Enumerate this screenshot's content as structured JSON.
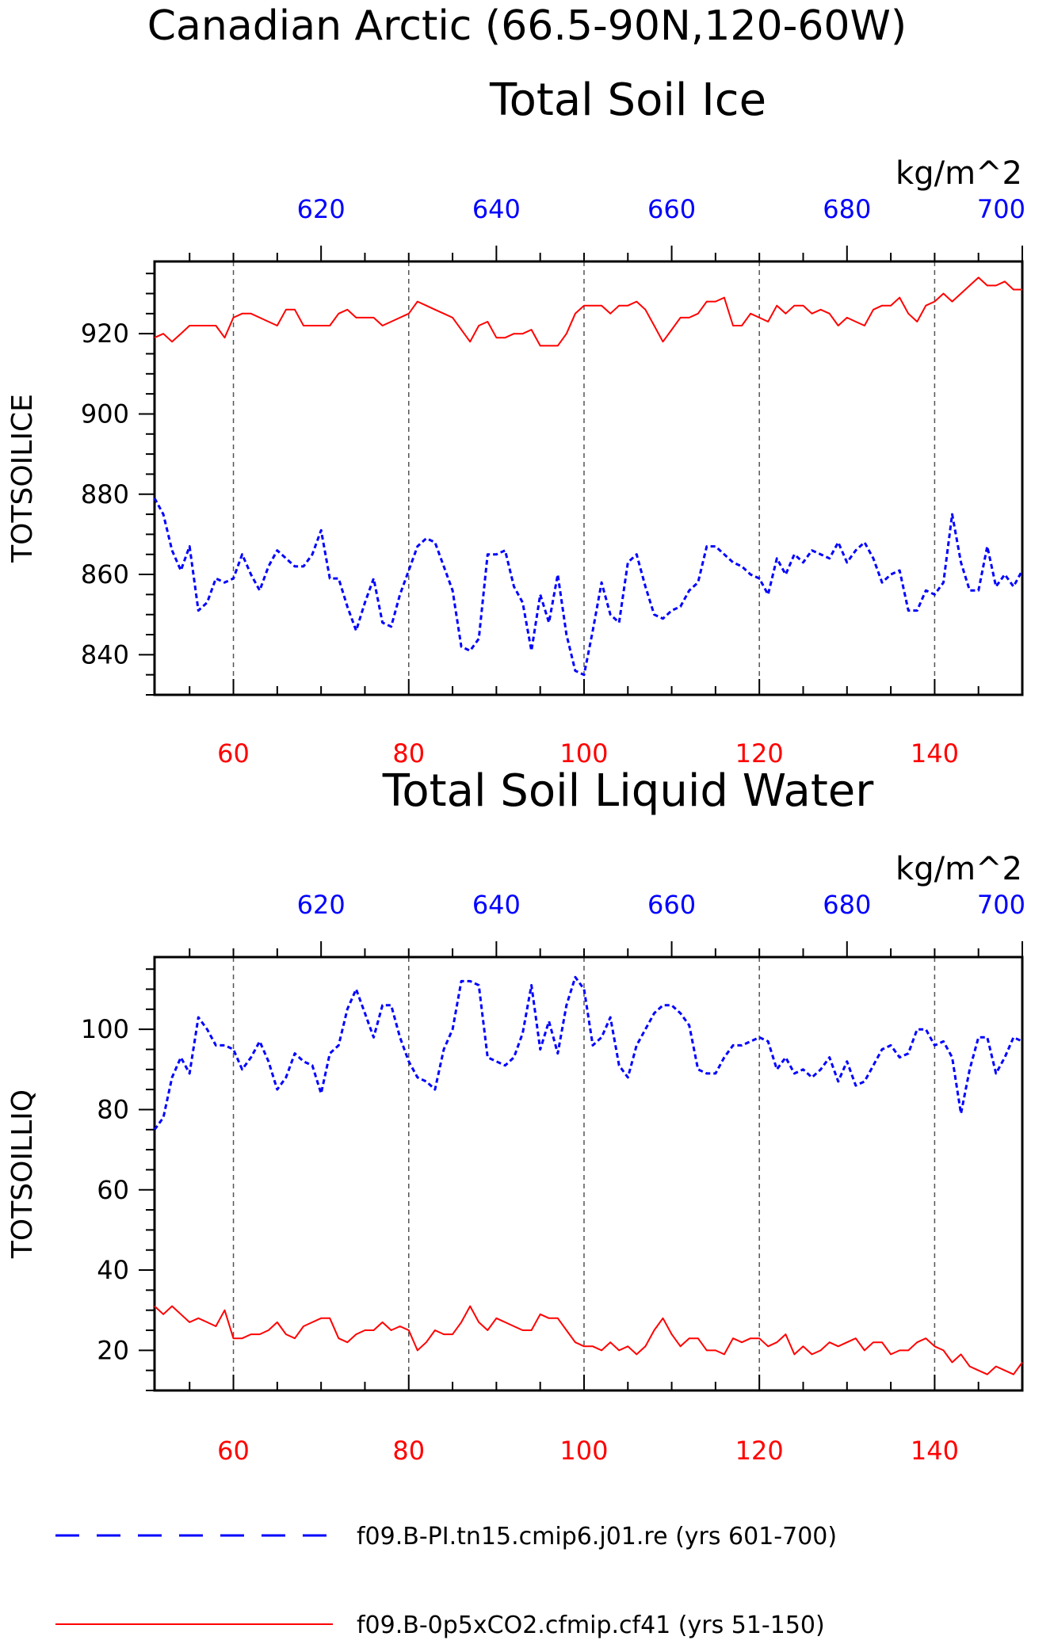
{
  "page": {
    "title_line1": "Canadian Arctic (66.5-90N,120-60W)"
  },
  "colors": {
    "red": "#ff0000",
    "blue": "#0000ff",
    "axis": "#000000",
    "grid": "#555555"
  },
  "legend": {
    "placement": "bottom",
    "entries": [
      {
        "label": "f09.B-PI.tn15.cmip6.j01.re (yrs 601-700)",
        "color": "#0000ff",
        "style": "dashed"
      },
      {
        "label": "f09.B-0p5xCO2.cfmip.cf41 (yrs 51-150)",
        "color": "#ff0000",
        "style": "solid"
      }
    ]
  },
  "chart_data": [
    {
      "type": "line",
      "title": "Total Soil Ice",
      "ylabel": "TOTSOILICE",
      "units": "kg/m^2",
      "xlim": [
        51,
        150
      ],
      "x2lim": [
        601,
        700
      ],
      "ylim": [
        830,
        938
      ],
      "x_ticks": [
        60,
        80,
        100,
        120,
        140
      ],
      "x2_ticks": [
        620,
        640,
        660,
        680,
        700
      ],
      "y_ticks": [
        840,
        860,
        880,
        900,
        920
      ],
      "grid": "vertical dashed at major x ticks",
      "series": [
        {
          "color": "#ff0000",
          "style": "solid",
          "axis": "bottom",
          "x_start": 51,
          "values": [
            919,
            920,
            918,
            920,
            922,
            922,
            922,
            922,
            919,
            924,
            925,
            925,
            924,
            923,
            922,
            926,
            926,
            922,
            922,
            922,
            922,
            925,
            926,
            924,
            924,
            924,
            922,
            923,
            924,
            925,
            928,
            927,
            926,
            925,
            924,
            921,
            918,
            922,
            923,
            919,
            919,
            920,
            920,
            921,
            917,
            917,
            917,
            920,
            925,
            927,
            927,
            927,
            925,
            927,
            927,
            928,
            926,
            922,
            918,
            921,
            924,
            924,
            925,
            928,
            928,
            929,
            922,
            922,
            925,
            924,
            923,
            927,
            925,
            927,
            927,
            925,
            926,
            925,
            922,
            924,
            923,
            922,
            926,
            927,
            927,
            929,
            925,
            923,
            927,
            928,
            930,
            928,
            930,
            932,
            934,
            932,
            932,
            933,
            931,
            931
          ]
        },
        {
          "color": "#0000ff",
          "style": "dashed",
          "axis": "top",
          "x_start": 601,
          "values": [
            879,
            875,
            866,
            861,
            867,
            851,
            853,
            859,
            858,
            859,
            865,
            860,
            856,
            862,
            866,
            864,
            862,
            862,
            865,
            871,
            859,
            859,
            852,
            846,
            853,
            859,
            848,
            847,
            855,
            861,
            867,
            869,
            868,
            862,
            856,
            842,
            841,
            844,
            865,
            865,
            866,
            857,
            853,
            841,
            855,
            848,
            860,
            845,
            836,
            835,
            846,
            858,
            850,
            848,
            863,
            865,
            857,
            850,
            849,
            851,
            852,
            856,
            858,
            867,
            867,
            865,
            863,
            862,
            860,
            859,
            855,
            864,
            860,
            865,
            863,
            866,
            865,
            864,
            868,
            863,
            866,
            868,
            864,
            858,
            860,
            861,
            851,
            851,
            856,
            855,
            858,
            875,
            863,
            856,
            856,
            867,
            857,
            860,
            857,
            861
          ]
        }
      ]
    },
    {
      "type": "line",
      "title": "Total Soil Liquid Water",
      "ylabel": "TOTSOILLIQ",
      "units": "kg/m^2",
      "xlim": [
        51,
        150
      ],
      "x2lim": [
        601,
        700
      ],
      "ylim": [
        10,
        118
      ],
      "x_ticks": [
        60,
        80,
        100,
        120,
        140
      ],
      "x2_ticks": [
        620,
        640,
        660,
        680,
        700
      ],
      "y_ticks": [
        20,
        40,
        60,
        80,
        100
      ],
      "grid": "vertical dashed at major x ticks",
      "series": [
        {
          "color": "#ff0000",
          "style": "solid",
          "axis": "bottom",
          "x_start": 51,
          "values": [
            31,
            29,
            31,
            29,
            27,
            28,
            27,
            26,
            30,
            23,
            23,
            24,
            24,
            25,
            27,
            24,
            23,
            26,
            27,
            28,
            28,
            23,
            22,
            24,
            25,
            25,
            27,
            25,
            26,
            25,
            20,
            22,
            25,
            24,
            24,
            27,
            31,
            27,
            25,
            28,
            27,
            26,
            25,
            25,
            29,
            28,
            28,
            25,
            22,
            21,
            21,
            20,
            22,
            20,
            21,
            19,
            21,
            25,
            28,
            24,
            21,
            23,
            23,
            20,
            20,
            19,
            23,
            22,
            23,
            23,
            21,
            22,
            24,
            19,
            21,
            19,
            20,
            22,
            21,
            22,
            23,
            20,
            22,
            22,
            19,
            20,
            20,
            22,
            23,
            21,
            20,
            17,
            19,
            16,
            15,
            14,
            16,
            15,
            14,
            17
          ]
        },
        {
          "color": "#0000ff",
          "style": "dashed",
          "axis": "top",
          "x_start": 601,
          "values": [
            75,
            78,
            88,
            93,
            89,
            103,
            100,
            96,
            96,
            95,
            90,
            93,
            97,
            92,
            85,
            88,
            94,
            92,
            91,
            84,
            94,
            96,
            105,
            110,
            104,
            98,
            106,
            106,
            98,
            92,
            88,
            87,
            85,
            95,
            100,
            112,
            112,
            111,
            93,
            92,
            91,
            93,
            99,
            111,
            95,
            102,
            94,
            106,
            113,
            110,
            96,
            98,
            103,
            91,
            88,
            96,
            100,
            104,
            106,
            106,
            104,
            101,
            90,
            89,
            89,
            93,
            96,
            96,
            97,
            98,
            97,
            90,
            93,
            89,
            90,
            88,
            90,
            93,
            87,
            92,
            86,
            87,
            91,
            95,
            96,
            93,
            94,
            100,
            100,
            96,
            97,
            93,
            79,
            90,
            98,
            98,
            89,
            93,
            98,
            97
          ]
        }
      ]
    }
  ]
}
